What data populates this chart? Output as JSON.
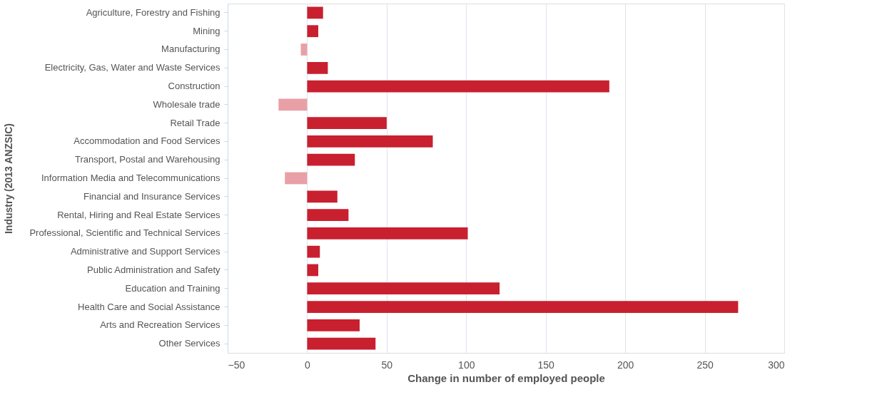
{
  "chart_data": {
    "type": "bar",
    "orientation": "horizontal",
    "xlabel": "Change in number of employed people",
    "ylabel": "Industry (2013 ANZSIC)",
    "categories": [
      "Agriculture, Forestry and Fishing",
      "Mining",
      "Manufacturing",
      "Electricity, Gas, Water and Waste Services",
      "Construction",
      "Wholesale trade",
      "Retail Trade",
      "Accommodation and Food Services",
      "Transport, Postal and Warehousing",
      "Information Media and Telecommunications",
      "Financial and Insurance Services",
      "Rental, Hiring and Real Estate Services",
      "Professional, Scientific and Technical Services",
      "Administrative and Support Services",
      "Public Administration and Safety",
      "Education and Training",
      "Health Care and Social Assistance",
      "Arts and Recreation Services",
      "Other Services"
    ],
    "values": [
      10,
      7,
      -4,
      13,
      190,
      -18,
      50,
      79,
      30,
      -14,
      19,
      26,
      101,
      8,
      7,
      121,
      271,
      33,
      43
    ],
    "colors": [
      "#c8202f",
      "#c8202f",
      "#e8a0a6",
      "#c8202f",
      "#c8202f",
      "#e8a0a6",
      "#c8202f",
      "#c8202f",
      "#c8202f",
      "#e8a0a6",
      "#c8202f",
      "#c8202f",
      "#c8202f",
      "#c8202f",
      "#c8202f",
      "#c8202f",
      "#c8202f",
      "#c8202f",
      "#c8202f"
    ],
    "xlim": [
      -50,
      300
    ],
    "xticks": [
      -50,
      0,
      50,
      100,
      150,
      200,
      250,
      300
    ],
    "grid": "x",
    "legend": false
  }
}
